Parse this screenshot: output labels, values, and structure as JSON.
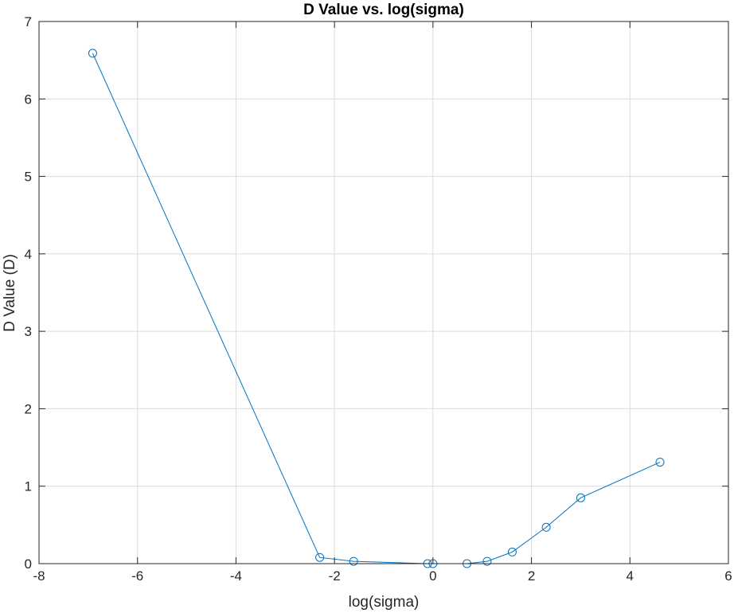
{
  "chart_data": {
    "type": "line",
    "title": "D Value vs. log(sigma)",
    "xlabel": "log(sigma)",
    "ylabel": "D Value (D)",
    "xlim": [
      -8,
      6
    ],
    "ylim": [
      0,
      7
    ],
    "xticks": [
      -8,
      -6,
      -4,
      -2,
      0,
      2,
      4,
      6
    ],
    "yticks": [
      0,
      1,
      2,
      3,
      4,
      5,
      6,
      7
    ],
    "xtick_labels": [
      "-8",
      "-6",
      "-4",
      "-2",
      "0",
      "2",
      "4",
      "6"
    ],
    "ytick_labels": [
      "0",
      "1",
      "2",
      "3",
      "4",
      "5",
      "6",
      "7"
    ],
    "grid": true,
    "series": [
      {
        "color": "#0072bd",
        "marker": "circle",
        "x": [
          -6.91,
          -2.3,
          -1.61,
          -0.11,
          0.0,
          0.69,
          1.1,
          1.61,
          2.3,
          3.0,
          4.61
        ],
        "y": [
          6.59,
          0.08,
          0.03,
          0.0,
          0.0,
          0.0,
          0.03,
          0.15,
          0.47,
          0.85,
          1.31
        ]
      }
    ]
  }
}
